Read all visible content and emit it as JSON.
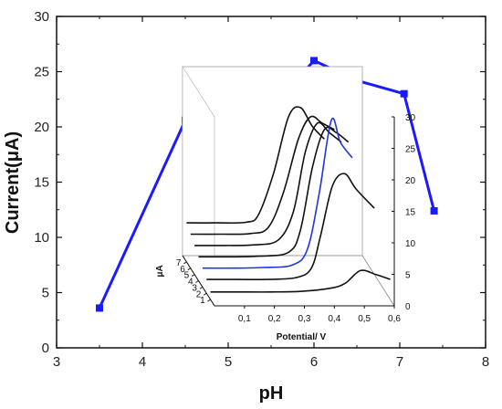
{
  "chart_data": [
    {
      "type": "line",
      "xlabel": "pH",
      "ylabel": "Current(μA)",
      "xlim": [
        3,
        8
      ],
      "ylim": [
        0,
        30
      ],
      "x_ticks": [
        "3",
        "4",
        "5",
        "6",
        "7",
        "8"
      ],
      "y_ticks": [
        "0",
        "5",
        "10",
        "15",
        "20",
        "25",
        "30"
      ],
      "grid": false,
      "series": [
        {
          "color": "#1a1aff",
          "marker": "square",
          "points": [
            {
              "x": 3.5,
              "y": 3.6
            },
            {
              "x": 4.5,
              "y": 20.6
            },
            {
              "x": 5.7,
              "y": 23.4
            },
            {
              "x": 6.0,
              "y": 26.0
            },
            {
              "x": 6.5,
              "y": 24.2
            },
            {
              "x": 7.05,
              "y": 23.0
            },
            {
              "x": 7.4,
              "y": 12.4
            }
          ]
        }
      ]
    },
    {
      "type": "line",
      "projection": "3d waterfall",
      "xlabel": "Potential/ V",
      "ylabel": "",
      "zlabel": "μA",
      "xlim": [
        0,
        0.6
      ],
      "zlim": [
        0,
        30
      ],
      "x_ticks": [
        "0,1",
        "0,2",
        "0,3",
        "0,4",
        "0,5",
        "0,6"
      ],
      "z_ticks": [
        "0",
        "5",
        "10",
        "15",
        "20",
        "25",
        "30"
      ],
      "depth_ticks": [
        "1",
        "2",
        "3",
        "4",
        "5",
        "6",
        "7"
      ],
      "series": [
        {
          "depth": 1,
          "color": "#111111",
          "points": [
            [
              0.0,
              1.2
            ],
            [
              0.1,
              1.2
            ],
            [
              0.2,
              1.2
            ],
            [
              0.3,
              1.3
            ],
            [
              0.4,
              1.8
            ],
            [
              0.45,
              2.6
            ],
            [
              0.5,
              4.6
            ],
            [
              0.55,
              4.0
            ],
            [
              0.6,
              3.2
            ]
          ]
        },
        {
          "depth": 2,
          "color": "#111111",
          "points": [
            [
              0.0,
              2.2
            ],
            [
              0.1,
              2.2
            ],
            [
              0.2,
              2.2
            ],
            [
              0.3,
              2.5
            ],
            [
              0.35,
              4.0
            ],
            [
              0.38,
              9.0
            ],
            [
              0.42,
              17.0
            ],
            [
              0.46,
              19.0
            ],
            [
              0.5,
              16.5
            ],
            [
              0.56,
              13.5
            ]
          ]
        },
        {
          "depth": 3,
          "color": "#2233dd",
          "points": [
            [
              0.0,
              3.0
            ],
            [
              0.1,
              3.0
            ],
            [
              0.2,
              3.1
            ],
            [
              0.3,
              3.5
            ],
            [
              0.35,
              6.0
            ],
            [
              0.39,
              15.0
            ],
            [
              0.43,
              26.5
            ],
            [
              0.46,
              23.0
            ],
            [
              0.5,
              20.5
            ]
          ]
        },
        {
          "depth": 4,
          "color": "#111111",
          "points": [
            [
              0.0,
              3.8
            ],
            [
              0.1,
              3.8
            ],
            [
              0.2,
              3.9
            ],
            [
              0.3,
              4.5
            ],
            [
              0.34,
              8.0
            ],
            [
              0.38,
              18.0
            ],
            [
              0.42,
              24.0
            ],
            [
              0.46,
              23.5
            ],
            [
              0.5,
              22.0
            ]
          ]
        },
        {
          "depth": 5,
          "color": "#111111",
          "points": [
            [
              0.0,
              4.6
            ],
            [
              0.1,
              4.6
            ],
            [
              0.2,
              4.7
            ],
            [
              0.28,
              5.5
            ],
            [
              0.33,
              10.0
            ],
            [
              0.37,
              19.5
            ],
            [
              0.41,
              24.0
            ],
            [
              0.45,
              22.5
            ],
            [
              0.49,
              21.0
            ]
          ]
        },
        {
          "depth": 6,
          "color": "#111111",
          "points": [
            [
              0.0,
              5.4
            ],
            [
              0.1,
              5.4
            ],
            [
              0.2,
              5.5
            ],
            [
              0.26,
              6.5
            ],
            [
              0.31,
              12.0
            ],
            [
              0.36,
              20.5
            ],
            [
              0.4,
              24.0
            ],
            [
              0.44,
              23.0
            ],
            [
              0.48,
              22.0
            ]
          ]
        },
        {
          "depth": 7,
          "color": "#111111",
          "points": [
            [
              0.0,
              6.2
            ],
            [
              0.1,
              6.2
            ],
            [
              0.2,
              6.3
            ],
            [
              0.24,
              7.5
            ],
            [
              0.29,
              14.0
            ],
            [
              0.34,
              23.0
            ],
            [
              0.38,
              24.5
            ],
            [
              0.42,
              21.5
            ],
            [
              0.46,
              19.5
            ]
          ]
        }
      ]
    }
  ]
}
